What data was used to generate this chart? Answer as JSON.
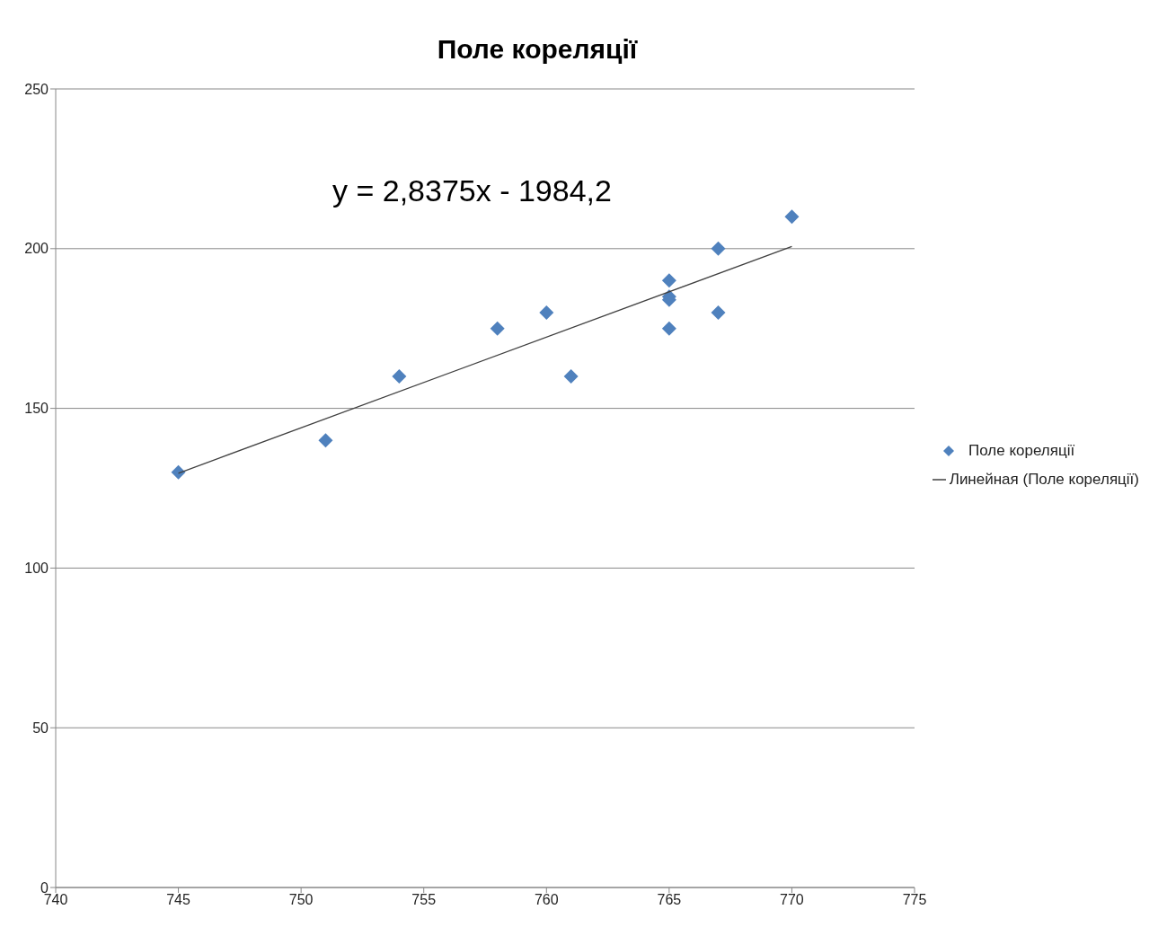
{
  "chart_data": {
    "type": "scatter",
    "title": "Поле кореляції",
    "annotations": [
      "y = 2,8375x - 1984,2"
    ],
    "series": [
      {
        "name": "Поле кореляції",
        "color": "#4f81bd",
        "marker": "diamond",
        "x": [
          745,
          751,
          754,
          758,
          760,
          761,
          765,
          765,
          765,
          765,
          767,
          767,
          770
        ],
        "values": [
          130,
          140,
          160,
          175,
          180,
          160,
          190,
          185,
          184,
          175,
          200,
          180,
          210
        ]
      },
      {
        "name": "Линейная (Поле кореляції)",
        "type": "line",
        "color": "#404040",
        "marker": "none",
        "x": [
          745,
          770
        ],
        "values": [
          129.7,
          200.7
        ]
      }
    ],
    "xlim": [
      740,
      775
    ],
    "xticks": [
      740,
      745,
      750,
      755,
      760,
      765,
      770,
      775
    ],
    "ylim": [
      0,
      250
    ],
    "yticks": [
      0,
      50,
      100,
      150,
      200,
      250
    ],
    "grid": "y",
    "legend": "right"
  }
}
